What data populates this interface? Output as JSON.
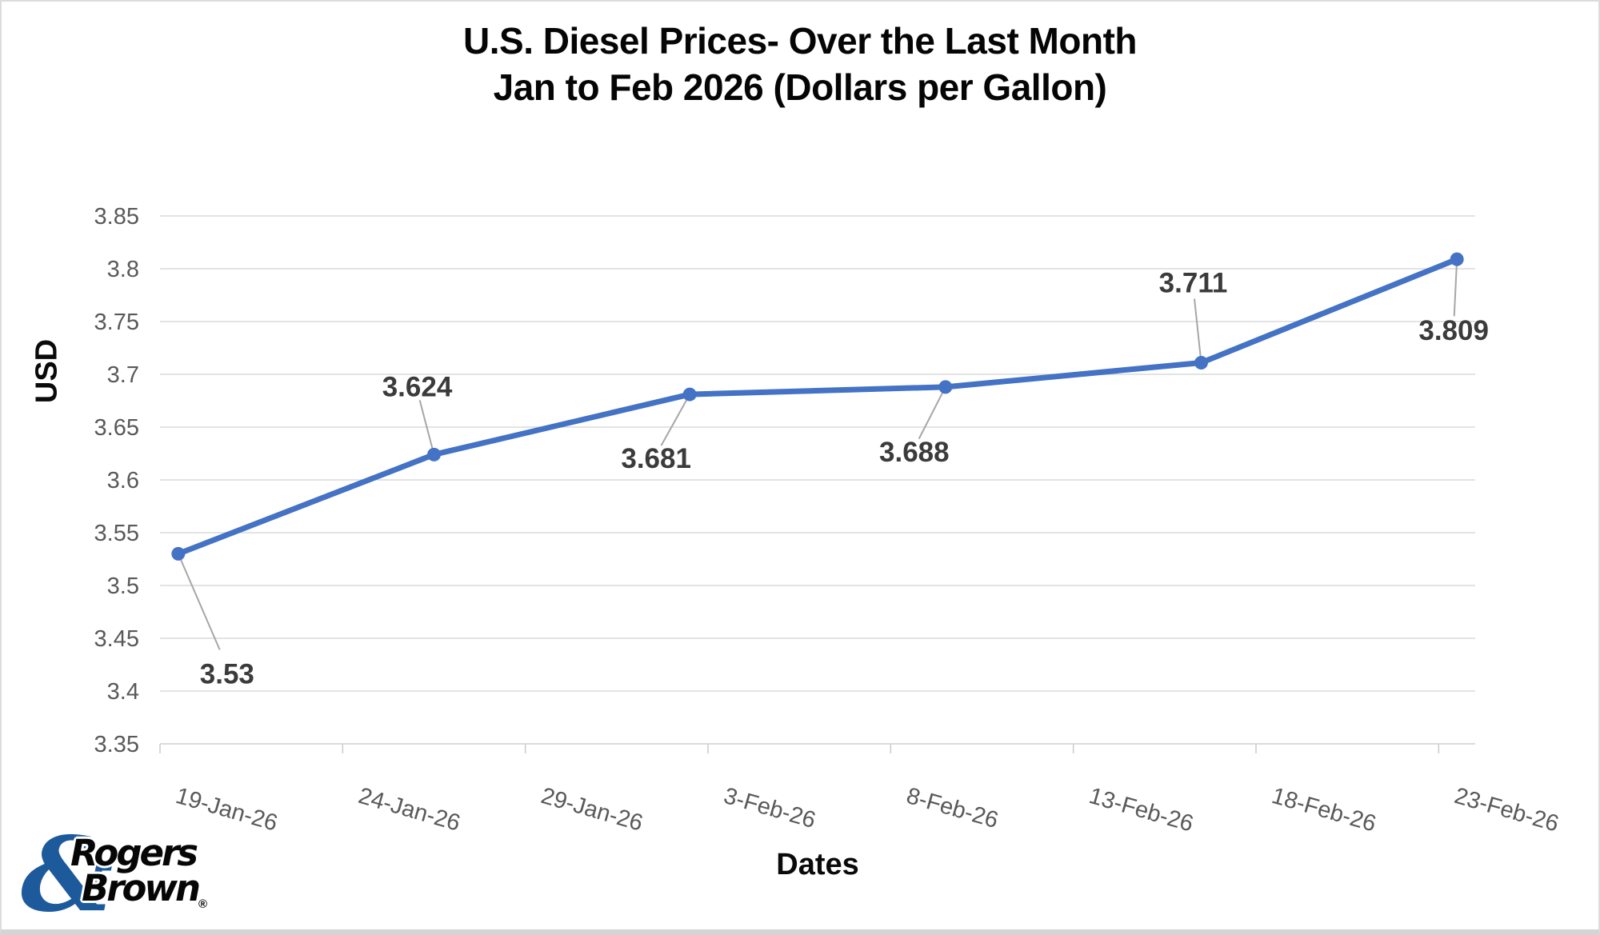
{
  "window": {
    "border_color": "#dcdcdc",
    "bottom_bar_color": "#d4d4d4",
    "background": "#ffffff"
  },
  "title": {
    "line1": "U.S. Diesel Prices- Over the Last Month",
    "line2": "Jan to Feb 2026 (Dollars per Gallon)"
  },
  "logo": {
    "ampersand": "&",
    "word1": "Rogers",
    "word2": "Brown",
    "registered_mark": "®",
    "blue": "#1d5a9c",
    "black": "#060606"
  },
  "chart_data": {
    "type": "line",
    "title": "U.S. Diesel Prices- Over the Last Month Jan to Feb 2026 (Dollars per Gallon)",
    "xlabel": "Dates",
    "ylabel": "USD",
    "values": [
      3.53,
      3.624,
      3.681,
      3.688,
      3.711,
      3.809
    ],
    "point_labels": [
      "3.53",
      "3.624",
      "3.681",
      "3.688",
      "3.711",
      "3.809"
    ],
    "point_day_offsets": [
      0,
      7,
      14,
      21,
      28,
      35
    ],
    "x_tick_labels": [
      "19-Jan-26",
      "24-Jan-26",
      "29-Jan-26",
      "3-Feb-26",
      "8-Feb-26",
      "13-Feb-26",
      "18-Feb-26",
      "23-Feb-26"
    ],
    "x_tick_day_offsets": [
      0,
      5,
      10,
      15,
      20,
      25,
      30,
      35
    ],
    "x_total_days": 36,
    "y_tick_labels": [
      "3.35",
      "3.4",
      "3.45",
      "3.5",
      "3.55",
      "3.6",
      "3.65",
      "3.7",
      "3.75",
      "3.8",
      "3.85"
    ],
    "ylim": [
      3.35,
      3.85
    ],
    "grid": "horizontal-only",
    "legend": "none",
    "colors": {
      "line": "#4472C4",
      "marker": "#4472C4",
      "gridline": "#dadada",
      "axis_line": "#cfcfcf",
      "tick_label": "#595959",
      "data_label": "#3b3b3b",
      "leader_line": "#a6a6a6"
    }
  }
}
